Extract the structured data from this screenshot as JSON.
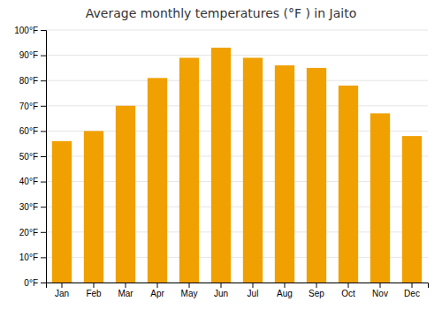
{
  "chart_data": {
    "type": "bar",
    "title": "Average monthly temperatures (°F ) in Jaito",
    "categories": [
      "Jan",
      "Feb",
      "Mar",
      "Apr",
      "May",
      "Jun",
      "Jul",
      "Aug",
      "Sep",
      "Oct",
      "Nov",
      "Dec"
    ],
    "values": [
      56,
      60,
      70,
      81,
      89,
      93,
      89,
      86,
      85,
      78,
      67,
      58
    ],
    "color": "#F0A000",
    "ylim": [
      0,
      100
    ],
    "yticks": [
      {
        "value": 0,
        "label": "0°F"
      },
      {
        "value": 10,
        "label": "10°F"
      },
      {
        "value": 20,
        "label": "20°F"
      },
      {
        "value": 30,
        "label": "30°F"
      },
      {
        "value": 40,
        "label": "40°F"
      },
      {
        "value": 50,
        "label": "50°F"
      },
      {
        "value": 60,
        "label": "60°F"
      },
      {
        "value": 70,
        "label": "70°F"
      },
      {
        "value": 80,
        "label": "80°F"
      },
      {
        "value": 90,
        "label": "90°F"
      },
      {
        "value": 100,
        "label": "100°F"
      }
    ],
    "grid": true
  }
}
